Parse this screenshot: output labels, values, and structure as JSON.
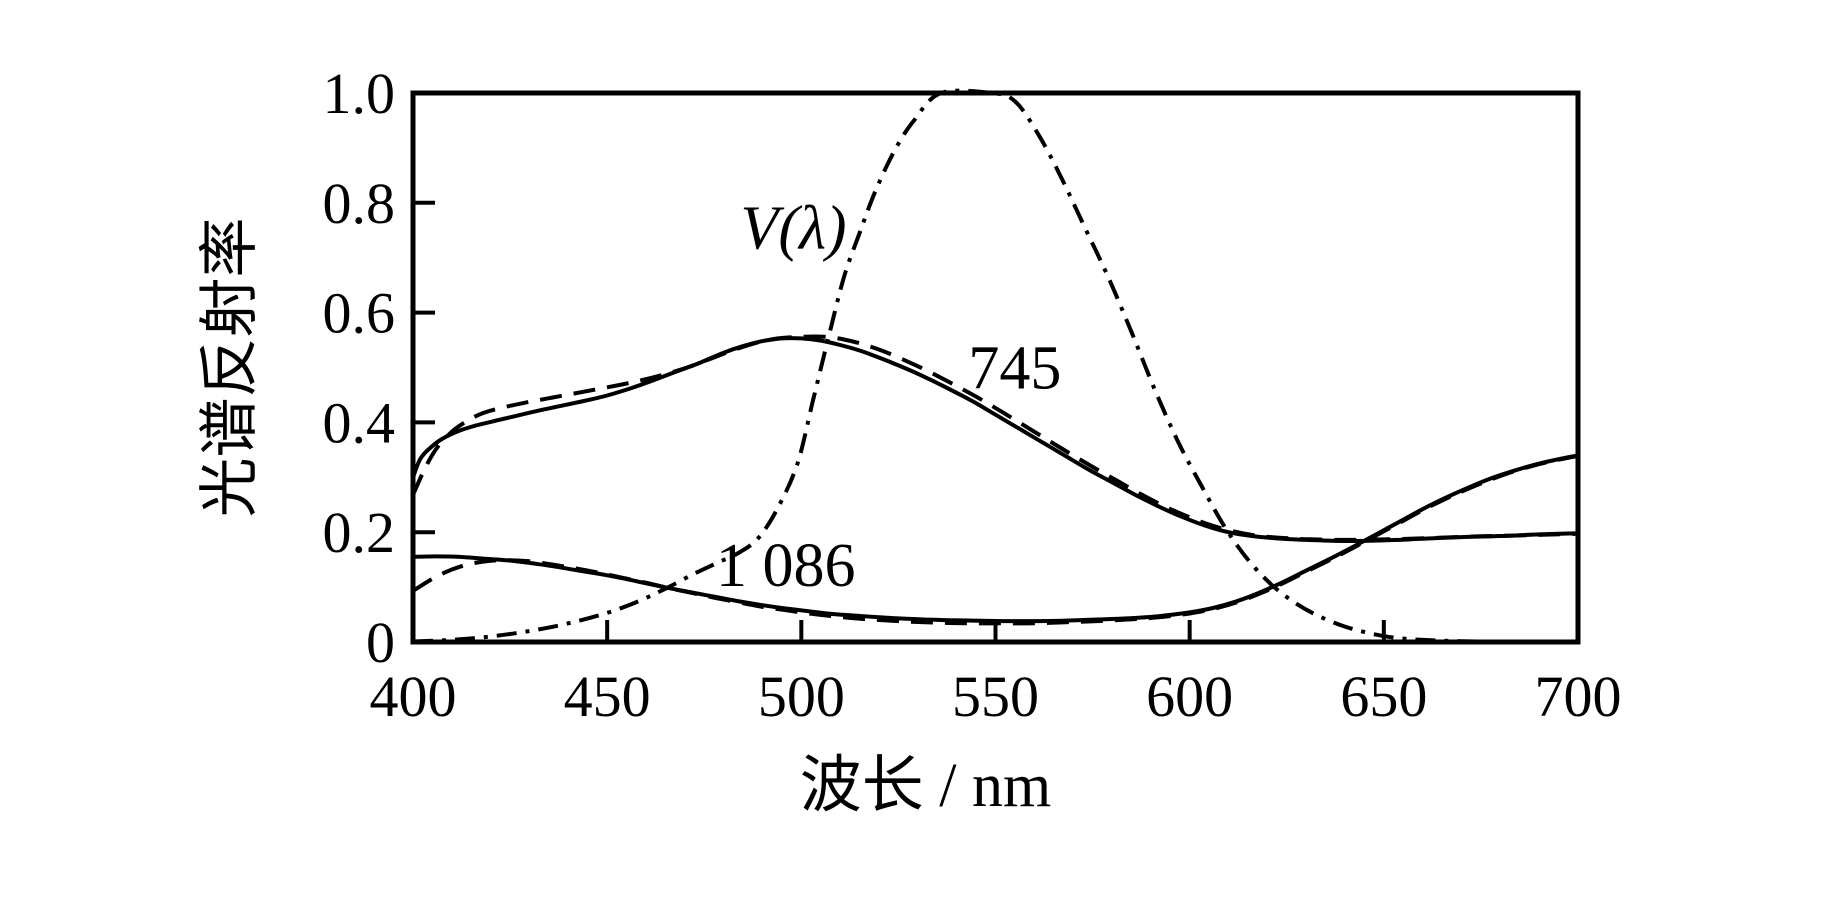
{
  "figure": {
    "background_color": "#ffffff",
    "ink_color": "#000000"
  },
  "chart_data": {
    "type": "line",
    "title": "",
    "xlabel": "波长 / nm",
    "ylabel": "光谱反射率",
    "xlim": [
      400,
      700
    ],
    "ylim": [
      0,
      1.0
    ],
    "x_ticks": [
      450,
      500,
      550,
      600,
      650
    ],
    "x_tick_labels_all": [
      "400",
      "450",
      "500",
      "550",
      "600",
      "650",
      "700"
    ],
    "x_tick_label_positions": [
      400,
      450,
      500,
      550,
      600,
      650,
      700
    ],
    "y_ticks": [
      0.2,
      0.4,
      0.6,
      0.8
    ],
    "y_tick_labels_all": [
      "0",
      "0.2",
      "0.4",
      "0.6",
      "0.8",
      "1.0"
    ],
    "y_tick_label_positions": [
      0,
      0.2,
      0.4,
      0.6,
      0.8,
      1.0
    ],
    "grid": false,
    "legend_position": "none",
    "series": [
      {
        "id": "v-lambda",
        "name": "V(λ) dash-dot curve",
        "style": "dashdot",
        "color": "#000000",
        "points": [
          [
            400,
            0.001
          ],
          [
            410,
            0.004
          ],
          [
            420,
            0.01
          ],
          [
            430,
            0.02
          ],
          [
            440,
            0.034
          ],
          [
            450,
            0.053
          ],
          [
            458,
            0.074
          ],
          [
            465,
            0.097
          ],
          [
            472,
            0.123
          ],
          [
            478,
            0.143
          ],
          [
            484,
            0.163
          ],
          [
            489,
            0.19
          ],
          [
            494,
            0.245
          ],
          [
            499,
            0.325
          ],
          [
            503,
            0.44
          ],
          [
            507,
            0.555
          ],
          [
            511,
            0.665
          ],
          [
            515,
            0.745
          ],
          [
            519,
            0.82
          ],
          [
            524,
            0.895
          ],
          [
            529,
            0.95
          ],
          [
            536,
            1.0
          ],
          [
            549,
            1.0
          ],
          [
            555,
            0.985
          ],
          [
            561,
            0.925
          ],
          [
            567,
            0.845
          ],
          [
            573,
            0.755
          ],
          [
            579,
            0.665
          ],
          [
            585,
            0.565
          ],
          [
            591,
            0.46
          ],
          [
            597,
            0.365
          ],
          [
            603,
            0.285
          ],
          [
            609,
            0.21
          ],
          [
            615,
            0.15
          ],
          [
            621,
            0.105
          ],
          [
            627,
            0.072
          ],
          [
            633,
            0.048
          ],
          [
            640,
            0.028
          ],
          [
            647,
            0.015
          ],
          [
            654,
            0.007
          ],
          [
            663,
            0.003
          ],
          [
            675,
            0.001
          ],
          [
            700,
            0.0
          ]
        ]
      },
      {
        "id": "745-solid",
        "name": "sample 745 solid curve",
        "style": "solid",
        "color": "#000000",
        "points": [
          [
            400,
            0.3
          ],
          [
            402,
            0.335
          ],
          [
            405,
            0.357
          ],
          [
            408,
            0.372
          ],
          [
            412,
            0.385
          ],
          [
            416,
            0.394
          ],
          [
            420,
            0.401
          ],
          [
            426,
            0.411
          ],
          [
            432,
            0.421
          ],
          [
            438,
            0.43
          ],
          [
            444,
            0.439
          ],
          [
            450,
            0.449
          ],
          [
            456,
            0.462
          ],
          [
            462,
            0.477
          ],
          [
            468,
            0.493
          ],
          [
            474,
            0.509
          ],
          [
            480,
            0.527
          ],
          [
            485,
            0.539
          ],
          [
            490,
            0.548
          ],
          [
            495,
            0.553
          ],
          [
            500,
            0.553
          ],
          [
            505,
            0.549
          ],
          [
            510,
            0.541
          ],
          [
            515,
            0.531
          ],
          [
            520,
            0.518
          ],
          [
            526,
            0.501
          ],
          [
            532,
            0.482
          ],
          [
            538,
            0.461
          ],
          [
            544,
            0.439
          ],
          [
            550,
            0.414
          ],
          [
            556,
            0.389
          ],
          [
            562,
            0.364
          ],
          [
            568,
            0.339
          ],
          [
            574,
            0.314
          ],
          [
            580,
            0.291
          ],
          [
            586,
            0.268
          ],
          [
            592,
            0.247
          ],
          [
            598,
            0.228
          ],
          [
            604,
            0.212
          ],
          [
            610,
            0.2
          ],
          [
            616,
            0.193
          ],
          [
            622,
            0.189
          ],
          [
            630,
            0.186
          ],
          [
            640,
            0.184
          ],
          [
            650,
            0.185
          ],
          [
            660,
            0.188
          ],
          [
            670,
            0.191
          ],
          [
            680,
            0.193
          ],
          [
            690,
            0.196
          ],
          [
            700,
            0.198
          ]
        ]
      },
      {
        "id": "745-dashed",
        "name": "sample 745 dashed curve",
        "style": "dashed",
        "color": "#000000",
        "points": [
          [
            400,
            0.268
          ],
          [
            403,
            0.315
          ],
          [
            406,
            0.352
          ],
          [
            410,
            0.383
          ],
          [
            414,
            0.403
          ],
          [
            418,
            0.417
          ],
          [
            423,
            0.427
          ],
          [
            429,
            0.436
          ],
          [
            435,
            0.444
          ],
          [
            441,
            0.452
          ],
          [
            447,
            0.46
          ],
          [
            453,
            0.468
          ],
          [
            459,
            0.477
          ],
          [
            465,
            0.488
          ],
          [
            471,
            0.501
          ],
          [
            477,
            0.517
          ],
          [
            483,
            0.533
          ],
          [
            489,
            0.546
          ],
          [
            494,
            0.553
          ],
          [
            500,
            0.556
          ],
          [
            506,
            0.556
          ],
          [
            511,
            0.551
          ],
          [
            516,
            0.542
          ],
          [
            521,
            0.53
          ],
          [
            527,
            0.512
          ],
          [
            533,
            0.492
          ],
          [
            539,
            0.47
          ],
          [
            545,
            0.447
          ],
          [
            551,
            0.422
          ],
          [
            557,
            0.396
          ],
          [
            563,
            0.37
          ],
          [
            569,
            0.344
          ],
          [
            575,
            0.319
          ],
          [
            581,
            0.295
          ],
          [
            587,
            0.271
          ],
          [
            593,
            0.249
          ],
          [
            599,
            0.23
          ],
          [
            605,
            0.214
          ],
          [
            611,
            0.202
          ],
          [
            617,
            0.194
          ],
          [
            623,
            0.19
          ],
          [
            631,
            0.187
          ],
          [
            641,
            0.186
          ],
          [
            651,
            0.187
          ],
          [
            661,
            0.189
          ],
          [
            672,
            0.192
          ],
          [
            684,
            0.194
          ],
          [
            700,
            0.197
          ]
        ]
      },
      {
        "id": "1086-solid",
        "name": "sample 1 086 solid curve",
        "style": "solid",
        "color": "#000000",
        "points": [
          [
            400,
            0.155
          ],
          [
            406,
            0.156
          ],
          [
            412,
            0.155
          ],
          [
            418,
            0.152
          ],
          [
            424,
            0.149
          ],
          [
            430,
            0.144
          ],
          [
            436,
            0.138
          ],
          [
            442,
            0.131
          ],
          [
            448,
            0.124
          ],
          [
            454,
            0.116
          ],
          [
            460,
            0.107
          ],
          [
            466,
            0.098
          ],
          [
            472,
            0.09
          ],
          [
            478,
            0.082
          ],
          [
            484,
            0.074
          ],
          [
            490,
            0.067
          ],
          [
            496,
            0.061
          ],
          [
            502,
            0.056
          ],
          [
            508,
            0.051
          ],
          [
            514,
            0.048
          ],
          [
            520,
            0.045
          ],
          [
            528,
            0.042
          ],
          [
            536,
            0.04
          ],
          [
            544,
            0.039
          ],
          [
            552,
            0.038
          ],
          [
            560,
            0.038
          ],
          [
            568,
            0.039
          ],
          [
            576,
            0.041
          ],
          [
            584,
            0.043
          ],
          [
            592,
            0.047
          ],
          [
            600,
            0.054
          ],
          [
            606,
            0.062
          ],
          [
            612,
            0.074
          ],
          [
            618,
            0.09
          ],
          [
            624,
            0.109
          ],
          [
            630,
            0.13
          ],
          [
            636,
            0.151
          ],
          [
            642,
            0.173
          ],
          [
            648,
            0.196
          ],
          [
            654,
            0.219
          ],
          [
            660,
            0.242
          ],
          [
            666,
            0.263
          ],
          [
            672,
            0.282
          ],
          [
            678,
            0.299
          ],
          [
            684,
            0.313
          ],
          [
            690,
            0.325
          ],
          [
            695,
            0.333
          ],
          [
            700,
            0.34
          ]
        ]
      },
      {
        "id": "1086-dashed",
        "name": "sample 1 086 dashed curve",
        "style": "dashed",
        "color": "#000000",
        "points": [
          [
            400,
            0.093
          ],
          [
            404,
            0.111
          ],
          [
            408,
            0.126
          ],
          [
            412,
            0.137
          ],
          [
            416,
            0.144
          ],
          [
            420,
            0.148
          ],
          [
            425,
            0.149
          ],
          [
            430,
            0.147
          ],
          [
            436,
            0.141
          ],
          [
            442,
            0.134
          ],
          [
            448,
            0.126
          ],
          [
            454,
            0.117
          ],
          [
            460,
            0.108
          ],
          [
            466,
            0.098
          ],
          [
            472,
            0.089
          ],
          [
            478,
            0.08
          ],
          [
            484,
            0.072
          ],
          [
            490,
            0.064
          ],
          [
            496,
            0.058
          ],
          [
            502,
            0.052
          ],
          [
            508,
            0.047
          ],
          [
            514,
            0.043
          ],
          [
            520,
            0.04
          ],
          [
            528,
            0.037
          ],
          [
            536,
            0.035
          ],
          [
            544,
            0.034
          ],
          [
            552,
            0.034
          ],
          [
            560,
            0.034
          ],
          [
            568,
            0.036
          ],
          [
            576,
            0.038
          ],
          [
            584,
            0.041
          ],
          [
            592,
            0.045
          ],
          [
            600,
            0.052
          ],
          [
            606,
            0.06
          ],
          [
            612,
            0.072
          ],
          [
            618,
            0.088
          ],
          [
            624,
            0.107
          ],
          [
            630,
            0.128
          ],
          [
            636,
            0.149
          ],
          [
            642,
            0.171
          ],
          [
            648,
            0.194
          ],
          [
            654,
            0.217
          ],
          [
            660,
            0.24
          ],
          [
            666,
            0.261
          ],
          [
            672,
            0.28
          ],
          [
            678,
            0.297
          ],
          [
            684,
            0.312
          ],
          [
            690,
            0.324
          ],
          [
            695,
            0.332
          ],
          [
            700,
            0.339
          ]
        ]
      }
    ],
    "annotations": [
      {
        "id": "v-lambda-label",
        "text": "V(λ)",
        "x": 498,
        "y": 0.755,
        "italic": true
      },
      {
        "id": "745-label",
        "text": "745",
        "x": 555,
        "y": 0.5,
        "italic": false
      },
      {
        "id": "1086-label",
        "text": "1 086",
        "x": 496,
        "y": 0.14,
        "italic": false
      }
    ]
  }
}
